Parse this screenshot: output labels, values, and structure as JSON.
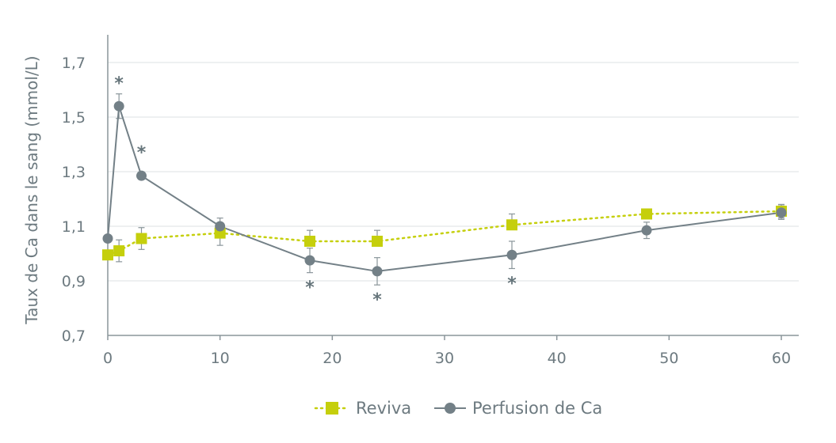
{
  "chart_data": {
    "type": "line",
    "title": "",
    "xlabel": "",
    "ylabel": "Taux de Ca dans le sang (mmol/L)",
    "xlim": [
      0,
      61
    ],
    "ylim": [
      0.7,
      1.8
    ],
    "xticks": [
      "0",
      "10",
      "20",
      "30",
      "40",
      "50",
      "60"
    ],
    "yticks": [
      "0,7",
      "0,9",
      "1,1",
      "1,3",
      "1,5",
      "1,7"
    ],
    "ytick_values": [
      0.7,
      0.9,
      1.1,
      1.3,
      1.5,
      1.7
    ],
    "xtick_values": [
      0,
      10,
      20,
      30,
      40,
      50,
      60
    ],
    "grid": "horizontal",
    "legend": "bottom-center",
    "series": [
      {
        "name": "Reviva",
        "color": "#c5cf0c",
        "style": "dotted",
        "marker": "square",
        "x": [
          0,
          1,
          3,
          10,
          18,
          24,
          36,
          48,
          60
        ],
        "y": [
          0.995,
          1.01,
          1.055,
          1.075,
          1.045,
          1.045,
          1.105,
          1.145,
          1.155
        ],
        "error": [
          0,
          0.04,
          0.04,
          0,
          0,
          0,
          0,
          0,
          0.025
        ]
      },
      {
        "name": "Perfusion de Ca",
        "color": "#738087",
        "style": "solid",
        "marker": "circle",
        "x": [
          0,
          1,
          3,
          10,
          18,
          24,
          36,
          48,
          60
        ],
        "y": [
          1.055,
          1.54,
          1.285,
          1.1,
          0.975,
          0.935,
          0.995,
          1.085,
          1.15
        ],
        "error": [
          0,
          0.045,
          0,
          0.03,
          0.045,
          0.05,
          0.05,
          0.03,
          0.025
        ]
      }
    ],
    "reviva_upper_errors": {
      "x": [
        18,
        24,
        36
      ],
      "error": [
        0.04,
        0.04,
        0.04
      ]
    },
    "perfusion_lower_errors": {
      "x": [
        10
      ],
      "error": [
        0.07
      ]
    },
    "significance": {
      "marker": "*",
      "x": [
        1,
        3,
        18,
        24,
        36
      ],
      "placement": [
        "above",
        "above",
        "below",
        "below",
        "below"
      ]
    }
  }
}
